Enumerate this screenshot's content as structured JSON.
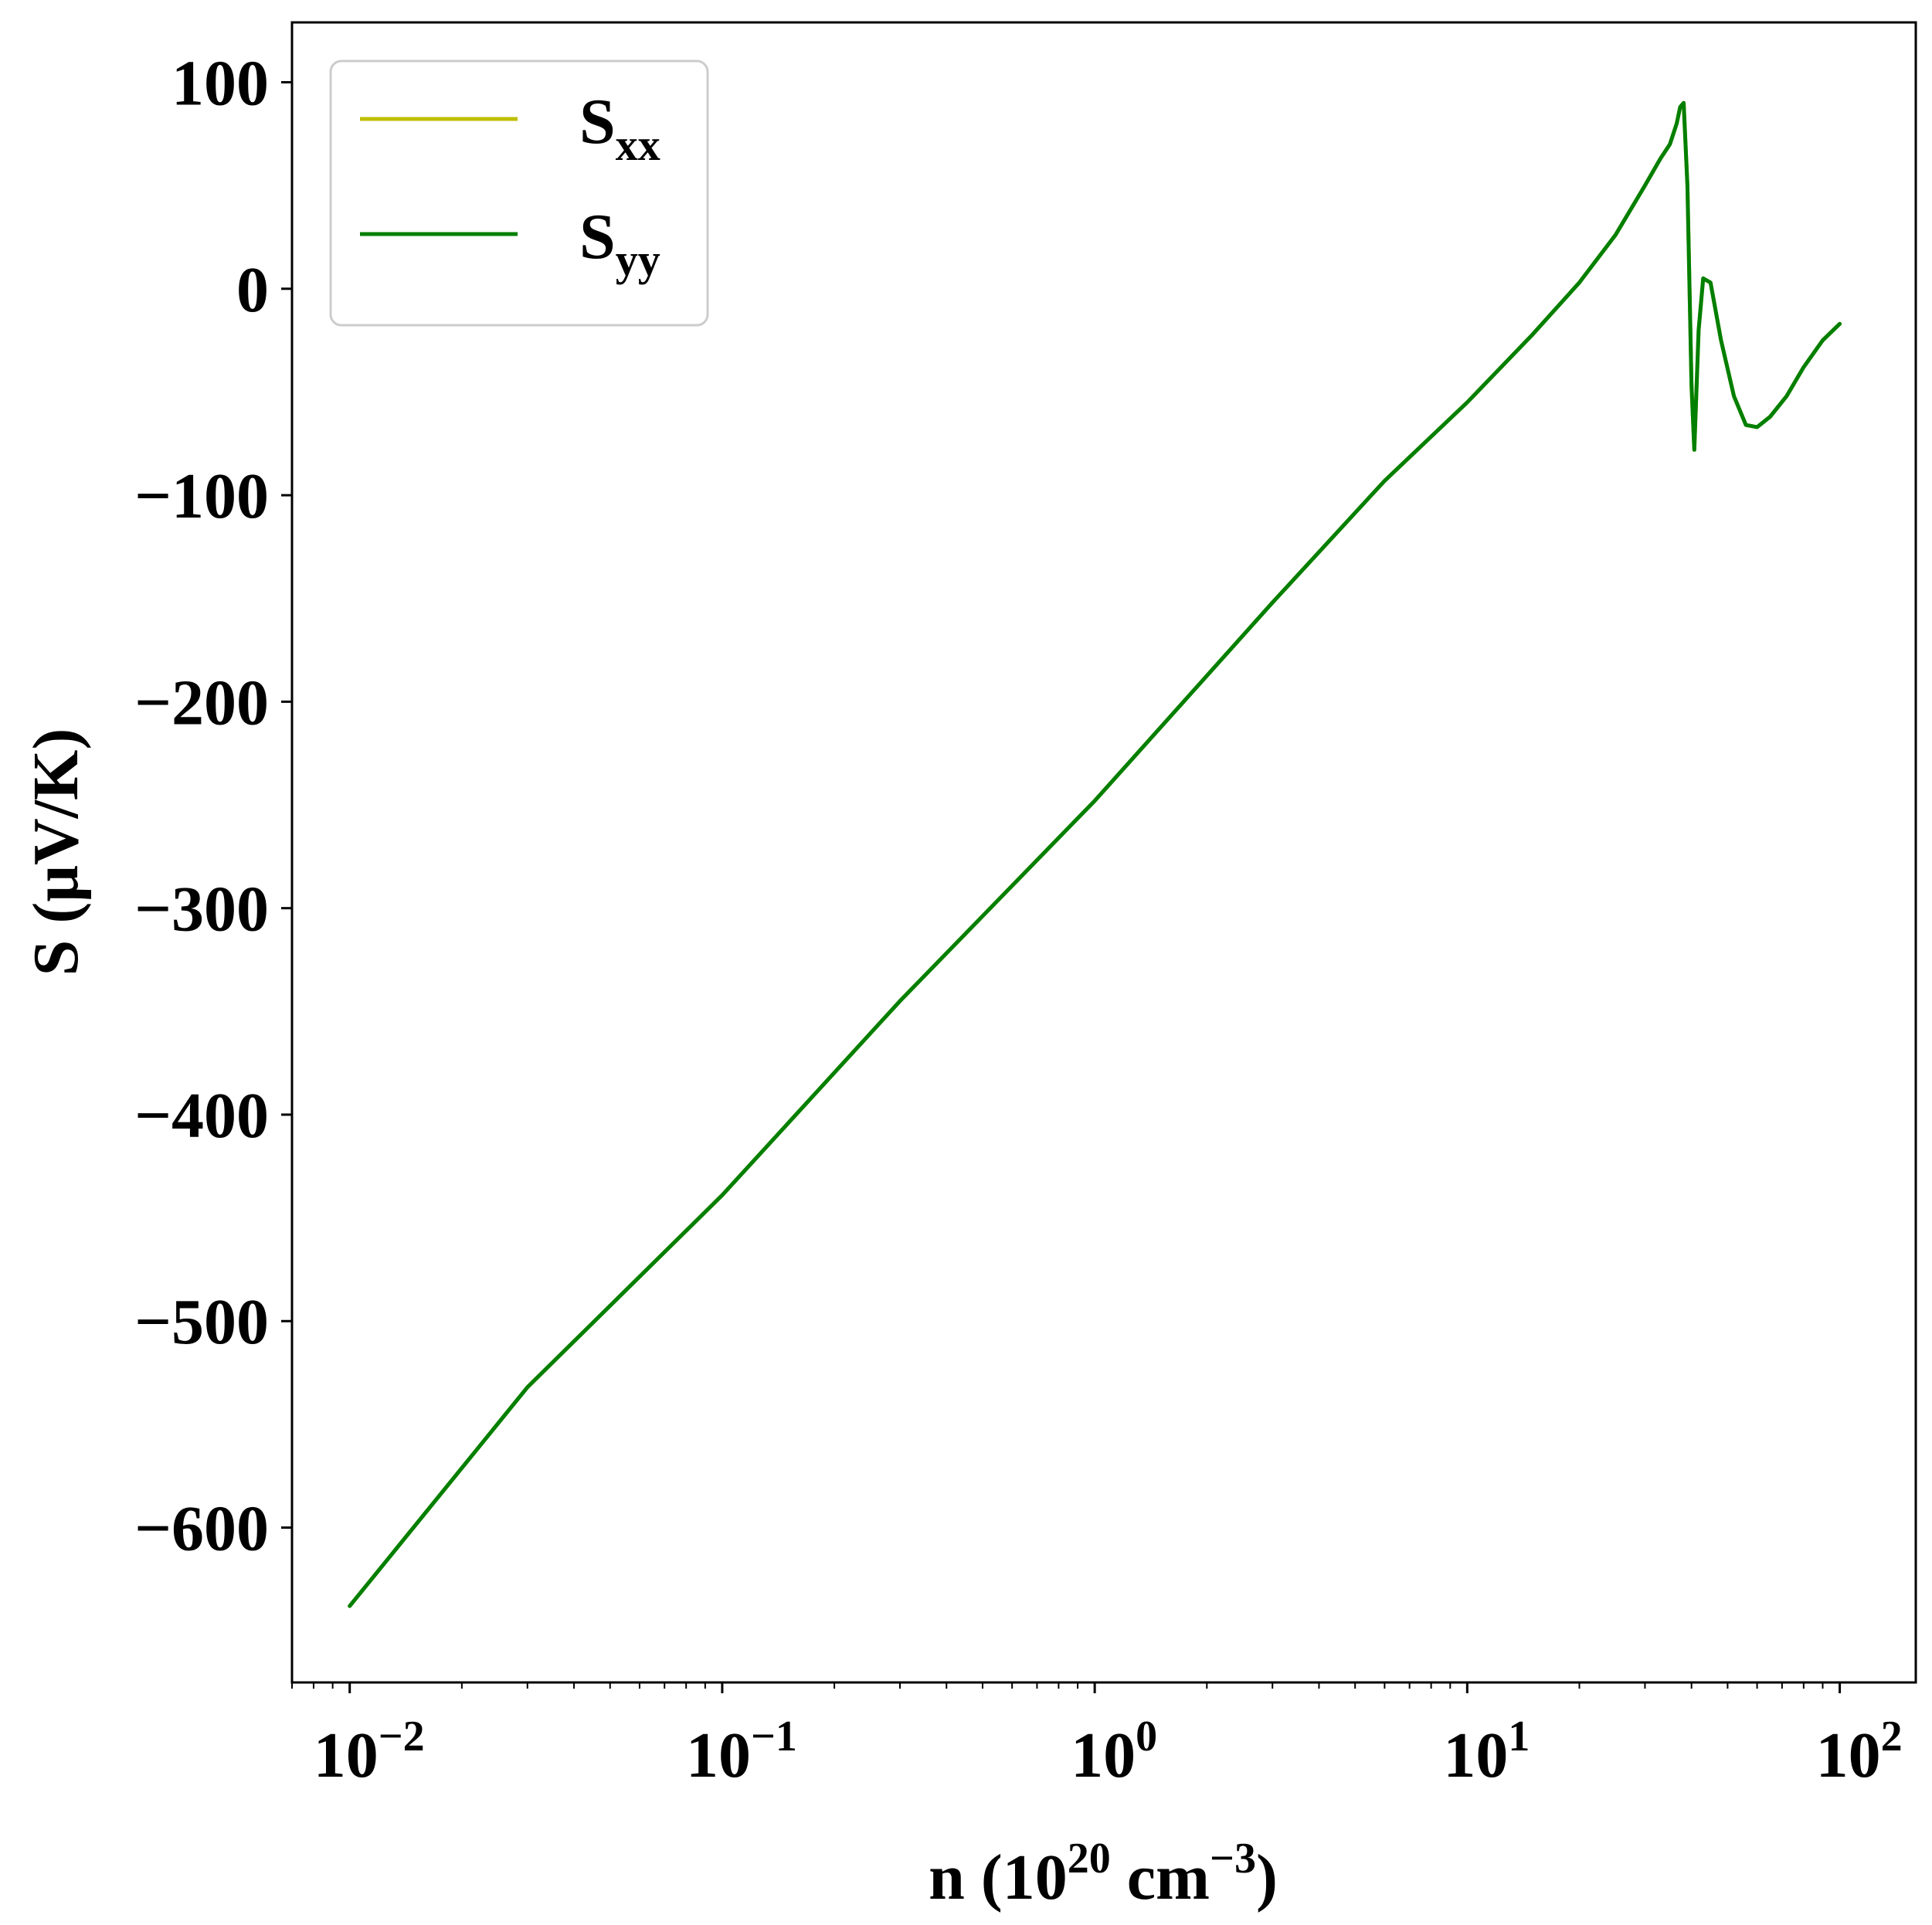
{
  "chart_data": {
    "type": "line",
    "x_scale": "log",
    "xlim": [
      0.007,
      160
    ],
    "ylim": [
      -675,
      129
    ],
    "xlabel": {
      "base": "n (10",
      "exp1": "20",
      "mid": " cm",
      "exp2": "−3",
      "end": ")"
    },
    "ylabel": "S (μV/K)",
    "x_ticks": [
      {
        "value": 0.01,
        "base": "10",
        "exp": "−2"
      },
      {
        "value": 0.1,
        "base": "10",
        "exp": "−1"
      },
      {
        "value": 1,
        "base": "10",
        "exp": "0"
      },
      {
        "value": 10,
        "base": "10",
        "exp": "1"
      },
      {
        "value": 100,
        "base": "10",
        "exp": "2"
      }
    ],
    "y_ticks": [
      {
        "value": 100,
        "label": "100"
      },
      {
        "value": 0,
        "label": "0"
      },
      {
        "value": -100,
        "label": "−100"
      },
      {
        "value": -200,
        "label": "−200"
      },
      {
        "value": -300,
        "label": "−300"
      },
      {
        "value": -400,
        "label": "−400"
      },
      {
        "value": -500,
        "label": "−500"
      },
      {
        "value": -600,
        "label": "−600"
      }
    ],
    "grid": false,
    "legend_position": "top-left",
    "series": [
      {
        "name": "S",
        "name_sub": "xx",
        "color": "#bfbf00",
        "x": [
          0.01,
          0.03,
          0.1,
          0.3,
          1,
          3,
          6,
          10,
          15,
          20,
          25,
          30,
          33,
          35,
          36.5,
          37.3,
          38.1,
          39.0,
          40.0,
          40.7,
          41.8,
          43.0,
          45.0,
          48,
          52,
          56,
          60,
          65,
          72,
          80,
          90,
          100
        ],
        "y": [
          -638,
          -532,
          -439,
          -345,
          -248,
          -152,
          -93,
          -55,
          -22,
          3,
          26,
          50,
          63,
          70,
          80,
          88,
          90,
          50,
          -47,
          -78,
          -20,
          5,
          3,
          -25,
          -52,
          -66,
          -67,
          -62,
          -52,
          -38,
          -25,
          -17
        ]
      },
      {
        "name": "S",
        "name_sub": "yy",
        "color": "#007f00",
        "x": [
          0.01,
          0.03,
          0.1,
          0.3,
          1,
          3,
          6,
          10,
          15,
          20,
          25,
          30,
          33,
          35,
          36.5,
          37.3,
          38.1,
          39.0,
          40.0,
          40.7,
          41.8,
          43.0,
          45.0,
          48,
          52,
          56,
          60,
          65,
          72,
          80,
          90,
          100
        ],
        "y": [
          -638,
          -532,
          -439,
          -345,
          -248,
          -152,
          -93,
          -55,
          -22,
          3,
          26,
          50,
          63,
          70,
          80,
          88,
          90,
          50,
          -47,
          -78,
          -20,
          5,
          3,
          -25,
          -52,
          -66,
          -67,
          -62,
          -52,
          -38,
          -25,
          -17
        ]
      }
    ]
  }
}
